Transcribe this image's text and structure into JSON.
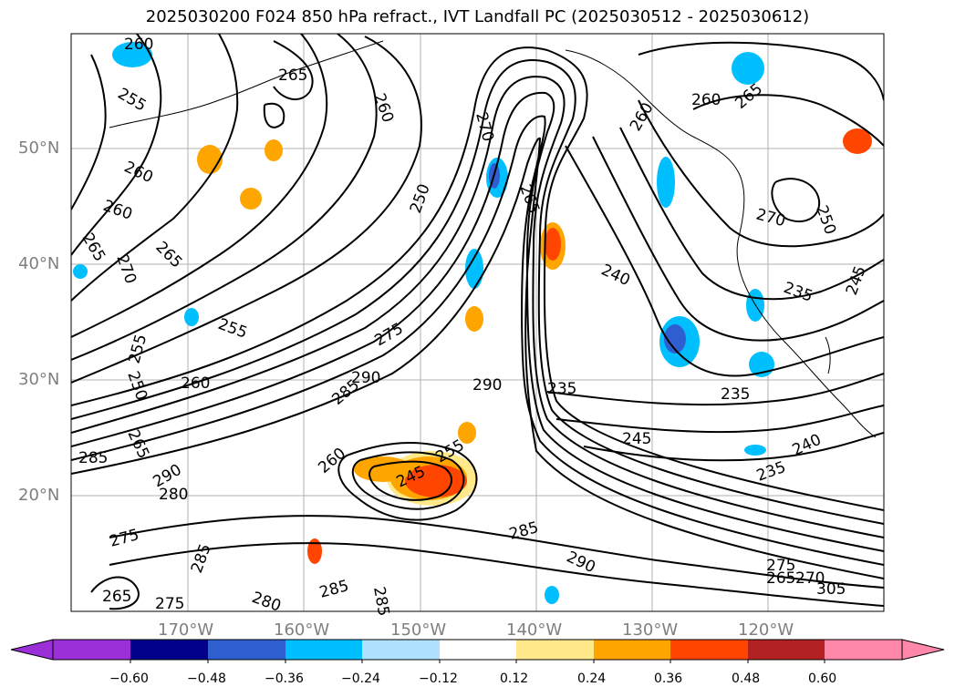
{
  "title": "2025030200 F024 850 hPa refract., IVT Landfall PC (2025030512 - 2025030612)",
  "lat_labels": [
    "50°N",
    "40°N",
    "30°N",
    "20°N"
  ],
  "lon_labels": [
    "170°W",
    "160°W",
    "150°W",
    "140°W",
    "130°W",
    "120°W"
  ],
  "contour_labels": [
    "260",
    "255",
    "265",
    "260",
    "260",
    "265",
    "270",
    "265",
    "260",
    "250",
    "270",
    "265",
    "260",
    "260",
    "265",
    "270",
    "250",
    "240",
    "235",
    "255",
    "275",
    "250",
    "255",
    "260",
    "265",
    "290",
    "285",
    "290",
    "235",
    "235",
    "245",
    "240",
    "235",
    "285",
    "290",
    "280",
    "245",
    "255",
    "260",
    "285",
    "285",
    "275",
    "290",
    "285",
    "285",
    "280",
    "265",
    "275",
    "275",
    "265",
    "270",
    "245",
    "305"
  ],
  "colorbar": {
    "colors": [
      "#9b30d9",
      "#00008b",
      "#2f5fcf",
      "#00bfff",
      "#b0e2ff",
      "#ffffff",
      "#ffe98a",
      "#ffa500",
      "#ff4500",
      "#b22222",
      "#ff88aa"
    ],
    "tick_labels": [
      "−0.60",
      "−0.48",
      "−0.36",
      "−0.24",
      "−0.12",
      "0.12",
      "0.24",
      "0.36",
      "0.48",
      "0.60"
    ]
  },
  "shading_colors": {
    "light_blue": "#b0e2ff",
    "blue": "#00bfff",
    "royal": "#2f5fcf",
    "yellow": "#ffe98a",
    "orange": "#ffa500",
    "red": "#ff4500"
  }
}
